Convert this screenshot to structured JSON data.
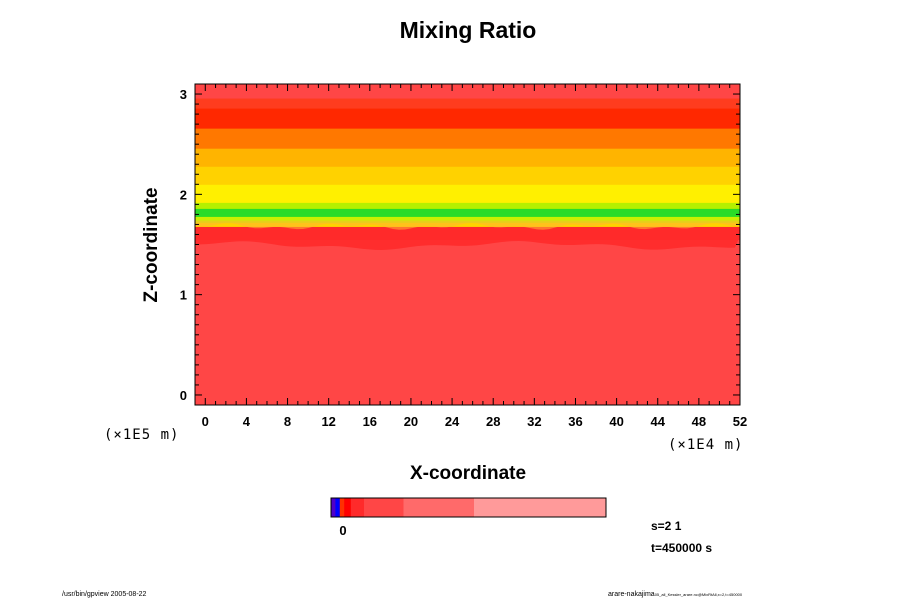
{
  "chart_data": {
    "type": "heatmap",
    "title": "Mixing Ratio",
    "xlabel": "X-coordinate",
    "ylabel": "Z-coordinate",
    "x_scale_note": "(×1E4 m)",
    "y_scale_note": "(×1E5 m)",
    "x_ticks": [
      "0",
      "4",
      "8",
      "12",
      "16",
      "20",
      "24",
      "28",
      "32",
      "36",
      "40",
      "44",
      "48",
      "52"
    ],
    "y_ticks": [
      "0",
      "1",
      "2",
      "3"
    ],
    "xlim": [
      -1,
      52
    ],
    "ylim": [
      -0.1,
      3.1
    ],
    "bands": [
      {
        "z0": -0.1,
        "z1": 1.55,
        "color": "#ff4646"
      },
      {
        "z0": 1.55,
        "z1": 1.68,
        "color": "#ff2a2a"
      },
      {
        "z0": 1.68,
        "z1": 1.72,
        "color": "#ffd200"
      },
      {
        "z0": 1.72,
        "z1": 1.78,
        "color": "#c8f000"
      },
      {
        "z0": 1.78,
        "z1": 1.86,
        "color": "#28dc28"
      },
      {
        "z0": 1.86,
        "z1": 1.92,
        "color": "#b4f000"
      },
      {
        "z0": 1.92,
        "z1": 2.1,
        "color": "#fff000"
      },
      {
        "z0": 2.1,
        "z1": 2.28,
        "color": "#ffd200"
      },
      {
        "z0": 2.28,
        "z1": 2.46,
        "color": "#ffb400"
      },
      {
        "z0": 2.46,
        "z1": 2.66,
        "color": "#ff7800"
      },
      {
        "z0": 2.66,
        "z1": 2.86,
        "color": "#ff2800"
      },
      {
        "z0": 2.86,
        "z1": 2.96,
        "color": "#ff3c1e"
      },
      {
        "z0": 2.96,
        "z1": 3.1,
        "color": "#ff4646"
      }
    ],
    "colorbar": {
      "tick_label": "0",
      "segments": [
        {
          "weight": 1,
          "color": "#5000c8"
        },
        {
          "weight": 1,
          "color": "#0000ff"
        },
        {
          "weight": 1,
          "color": "#ff3000"
        },
        {
          "weight": 1.5,
          "color": "#ff0000"
        },
        {
          "weight": 3,
          "color": "#ff2a2a"
        },
        {
          "weight": 9,
          "color": "#ff4646"
        },
        {
          "weight": 16,
          "color": "#ff6a6a"
        },
        {
          "weight": 30,
          "color": "#ff9a9a"
        }
      ]
    }
  },
  "info": {
    "s_label": "s=2 1",
    "t_label": "t=450000 s"
  },
  "footer": {
    "left": "/usr/bin/gpview 2005-08-22",
    "right": "arare-nakajima",
    "right_small": "05_all_Kessler_arare.nc@MixRtAll,x=2,t=450000"
  }
}
